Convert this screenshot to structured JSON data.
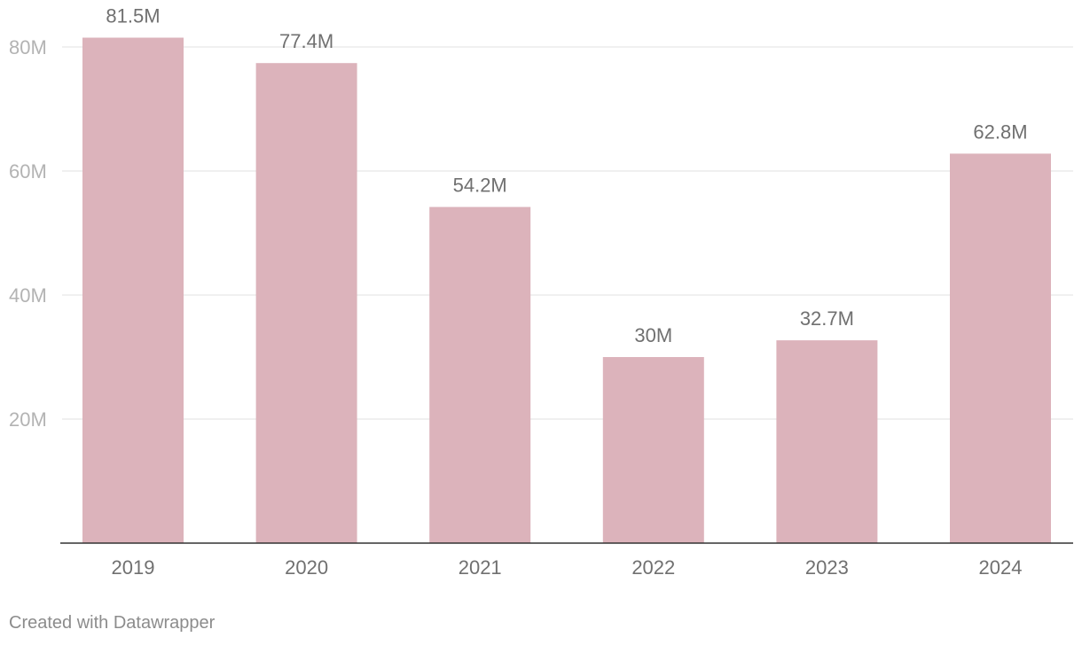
{
  "chart_data": {
    "type": "bar",
    "categories": [
      "2019",
      "2020",
      "2021",
      "2022",
      "2023",
      "2024"
    ],
    "values": [
      81.5,
      77.4,
      54.2,
      30,
      32.7,
      62.8
    ],
    "value_labels": [
      "81.5M",
      "77.4M",
      "54.2M",
      "30M",
      "32.7M",
      "62.8M"
    ],
    "y_ticks": [
      {
        "value": 20,
        "label": "20M"
      },
      {
        "value": 40,
        "label": "40M"
      },
      {
        "value": 60,
        "label": "60M"
      },
      {
        "value": 80,
        "label": "80M"
      }
    ],
    "ylim": [
      0,
      80
    ],
    "grid": true,
    "bar_color": "#dcb3bb",
    "title": "",
    "xlabel": "",
    "ylabel": ""
  },
  "footer": {
    "credit": "Created with Datawrapper"
  }
}
